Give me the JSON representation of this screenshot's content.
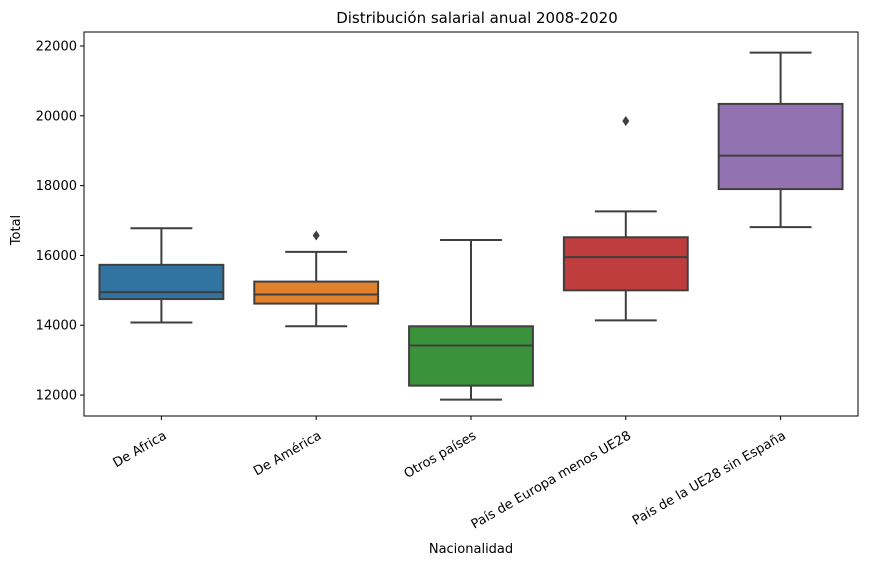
{
  "chart_data": {
    "type": "box",
    "title": "Distribución salarial anual 2008-2020",
    "xlabel": "Nacionalidad",
    "ylabel": "Total",
    "ylim": [
      11400,
      22400
    ],
    "yticks": [
      12000,
      14000,
      16000,
      18000,
      20000,
      22000
    ],
    "categories": [
      "De Africa",
      "De América",
      "Otros países",
      "País de Europa menos UE28",
      "País de la UE28 sin España"
    ],
    "boxes": [
      {
        "category": "De Africa",
        "min": 14080,
        "q1": 14750,
        "median": 14950,
        "q3": 15730,
        "max": 16780,
        "outliers": [],
        "color": "#3274a1"
      },
      {
        "category": "De América",
        "min": 13970,
        "q1": 14620,
        "median": 14880,
        "q3": 15250,
        "max": 16100,
        "outliers": [
          16570
        ],
        "color": "#e1812c"
      },
      {
        "category": "Otros países",
        "min": 11870,
        "q1": 12270,
        "median": 13420,
        "q3": 13970,
        "max": 16440,
        "outliers": [],
        "color": "#3a923a"
      },
      {
        "category": "País de Europa menos UE28",
        "min": 14140,
        "q1": 15000,
        "median": 15950,
        "q3": 16520,
        "max": 17260,
        "outliers": [
          19850
        ],
        "color": "#c03d3e"
      },
      {
        "category": "País de la UE28 sin España",
        "min": 16810,
        "q1": 17900,
        "median": 18860,
        "q3": 20340,
        "max": 21810,
        "outliers": [],
        "color": "#9372b2"
      }
    ],
    "grid": false,
    "legend": "none"
  }
}
